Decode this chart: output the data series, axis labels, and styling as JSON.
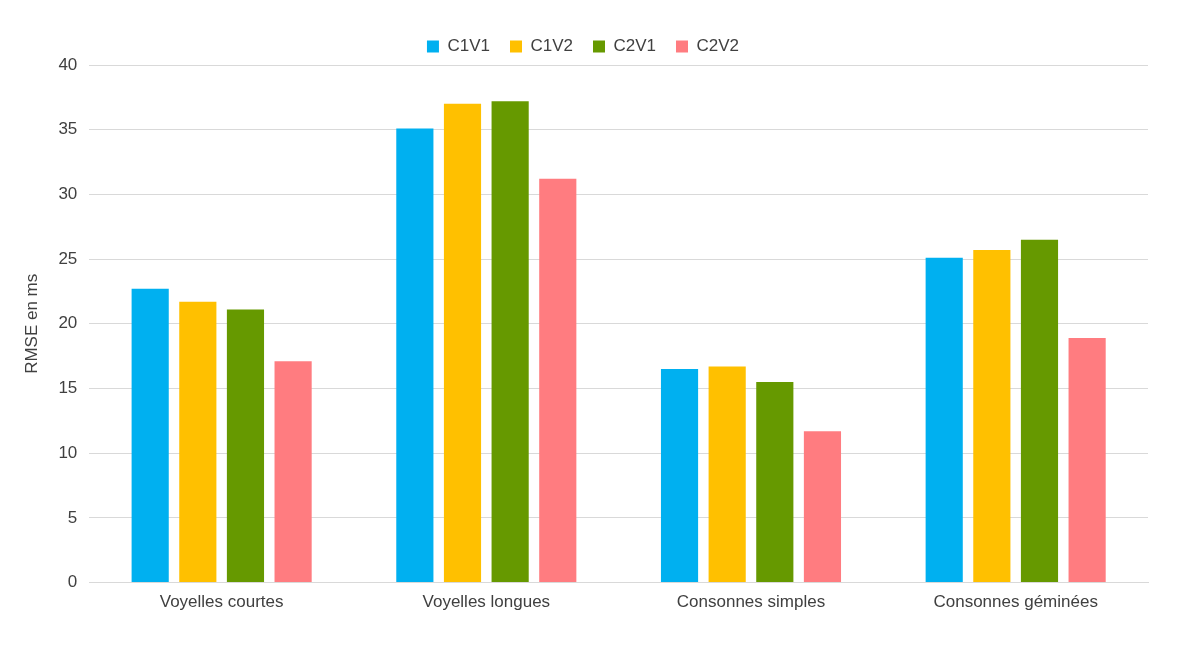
{
  "chart_data": {
    "type": "bar",
    "ylabel": "RMSE en ms",
    "categories": [
      "Voyelles courtes",
      "Voyelles longues",
      "Consonnes simples",
      "Consonnes géminées"
    ],
    "series": [
      {
        "name": "C1V1",
        "color": "#00b0f0",
        "values": [
          22.7,
          35.1,
          16.5,
          25.1
        ]
      },
      {
        "name": "C1V2",
        "color": "#ffc000",
        "values": [
          21.7,
          37.0,
          16.7,
          25.7
        ]
      },
      {
        "name": "C2V1",
        "color": "#669900",
        "values": [
          21.1,
          37.2,
          15.5,
          26.5
        ]
      },
      {
        "name": "C2V2",
        "color": "#ff7c80",
        "values": [
          17.1,
          31.2,
          11.7,
          18.9
        ]
      }
    ],
    "ylim": [
      0,
      40
    ],
    "yticks": [
      0,
      5,
      10,
      15,
      20,
      25,
      30,
      35,
      40
    ],
    "grid": "y",
    "legend": "top"
  }
}
